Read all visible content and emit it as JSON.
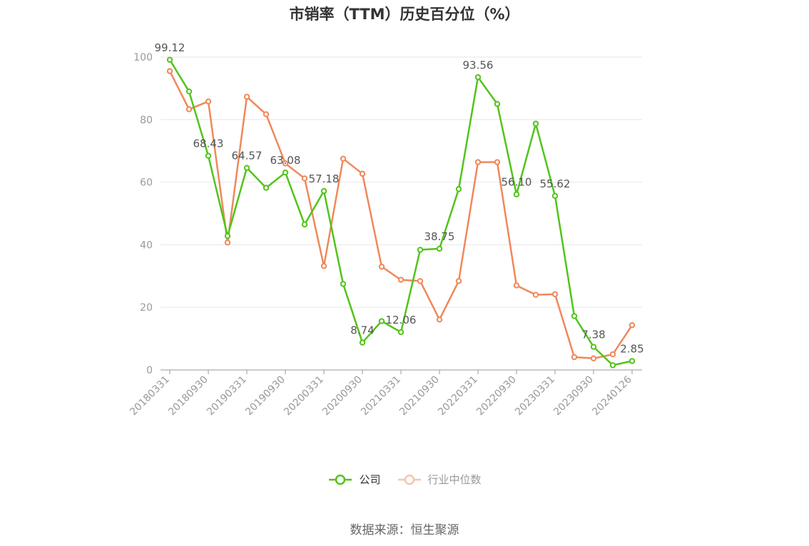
{
  "title": "市销率（TTM）历史百分位（%）",
  "source": "数据来源：恒生聚源",
  "chart_data": {
    "type": "line",
    "y_ticks": [
      "0",
      "20",
      "40",
      "60",
      "80",
      "100"
    ],
    "ylim": [
      0,
      100
    ],
    "grid": true,
    "legend_position": "bottom-center",
    "x_tick_labels": [
      "20180331",
      "20180930",
      "20190331",
      "20190930",
      "20200331",
      "20200930",
      "20210331",
      "20210930",
      "20220331",
      "20220930",
      "20230331",
      "20230930",
      "20240126"
    ],
    "x": [
      "20180331",
      "20180630",
      "20180930",
      "20181231",
      "20190331",
      "20190630",
      "20190930",
      "20191231",
      "20200331",
      "20200630",
      "20200930",
      "20201231",
      "20210331",
      "20210630",
      "20210930",
      "20211231",
      "20220331",
      "20220630",
      "20220930",
      "20221231",
      "20230331",
      "20230630",
      "20230930",
      "20231231",
      "20240126"
    ],
    "series": [
      {
        "name": "公司",
        "color": "#52c41a",
        "values": [
          99.12,
          89.0,
          68.43,
          42.8,
          64.57,
          58.2,
          63.08,
          46.5,
          57.18,
          27.5,
          8.74,
          15.6,
          12.06,
          38.4,
          38.75,
          57.8,
          93.56,
          85.0,
          56.1,
          78.7,
          55.62,
          17.2,
          7.38,
          1.5,
          2.85
        ],
        "labels": [
          "99.12",
          "",
          "68.43",
          "",
          "64.57",
          "",
          "63.08",
          "",
          "57.18",
          "",
          "8.74",
          "",
          "12.06",
          "",
          "38.75",
          "",
          "93.56",
          "",
          "56.10",
          "",
          "55.62",
          "",
          "7.38",
          "",
          "2.85"
        ]
      },
      {
        "name": "行业中位数",
        "color": "#f0885a",
        "values": [
          95.5,
          83.3,
          85.8,
          40.7,
          87.3,
          81.7,
          66.0,
          61.2,
          33.2,
          67.5,
          62.7,
          33.0,
          28.8,
          28.4,
          16.1,
          28.4,
          66.4,
          66.4,
          27.0,
          24.0,
          24.2,
          4.1,
          3.7,
          5.0,
          14.3
        ]
      }
    ]
  },
  "legend": {
    "company": "公司",
    "industry": "行业中位数"
  }
}
